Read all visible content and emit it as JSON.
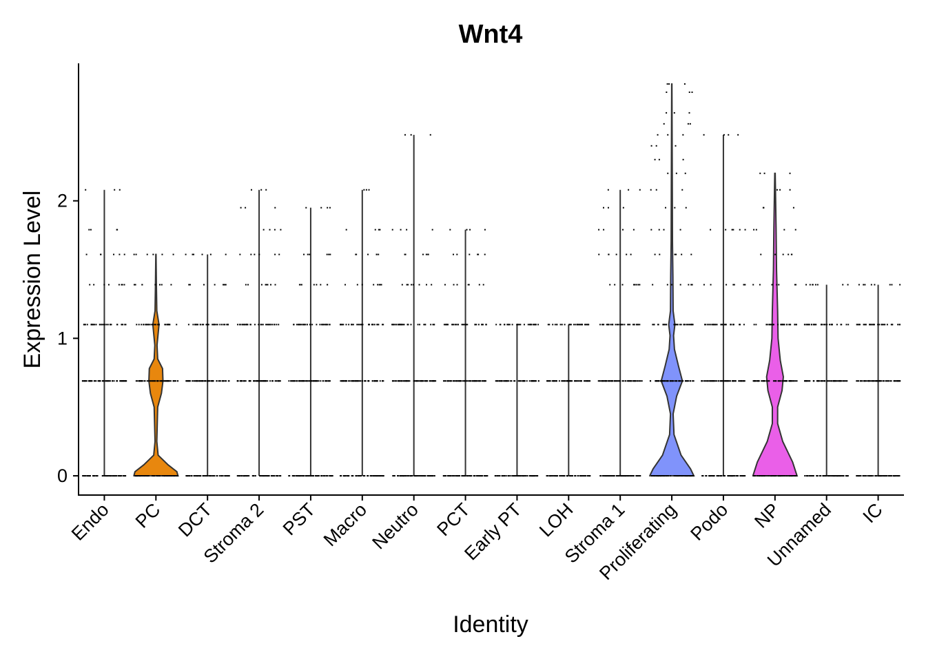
{
  "chart_data": {
    "type": "violin",
    "title": "Wnt4",
    "xlabel": "Identity",
    "ylabel": "Expression Level",
    "ylim": [
      -0.14,
      3.0
    ],
    "yticks": [
      "0",
      "1",
      "2"
    ],
    "grid": false,
    "legend": "none",
    "categories": [
      "Endo",
      "PC",
      "DCT",
      "Stroma 2",
      "PST",
      "Macro",
      "Neutro",
      "PCT",
      "Early PT",
      "LOH",
      "Stroma 1",
      "Proliferating",
      "Podo",
      "NP",
      "Unnamed",
      "IC"
    ],
    "series": [
      {
        "category": "Endo",
        "color": "#ffffff",
        "max": 2.08,
        "levels": [
          0,
          0.69,
          1.1,
          1.39,
          1.61,
          1.79,
          2.08
        ]
      },
      {
        "category": "PC",
        "color": "#e8870e",
        "max": 1.61,
        "levels": [
          0,
          0.69,
          1.1,
          1.39,
          1.61
        ]
      },
      {
        "category": "DCT",
        "color": "#ffffff",
        "max": 1.61,
        "levels": [
          0,
          0.69,
          1.1,
          1.39,
          1.61
        ]
      },
      {
        "category": "Stroma 2",
        "color": "#ffffff",
        "max": 2.08,
        "levels": [
          0,
          0.69,
          1.1,
          1.39,
          1.61,
          1.79,
          1.95,
          2.08
        ]
      },
      {
        "category": "PST",
        "color": "#ffffff",
        "max": 1.95,
        "levels": [
          0,
          0.69,
          1.1,
          1.39,
          1.61,
          1.95
        ]
      },
      {
        "category": "Macro",
        "color": "#ffffff",
        "max": 2.08,
        "levels": [
          0,
          0.69,
          1.1,
          1.39,
          1.61,
          1.79,
          2.08
        ]
      },
      {
        "category": "Neutro",
        "color": "#ffffff",
        "max": 2.48,
        "levels": [
          0,
          0.69,
          1.1,
          1.39,
          1.61,
          1.79,
          2.48
        ]
      },
      {
        "category": "PCT",
        "color": "#ffffff",
        "max": 1.79,
        "levels": [
          0,
          0.69,
          1.1,
          1.39,
          1.61,
          1.79
        ]
      },
      {
        "category": "Early PT",
        "color": "#ffffff",
        "max": 1.1,
        "levels": [
          0,
          0.69,
          1.1
        ]
      },
      {
        "category": "LOH",
        "color": "#ffffff",
        "max": 1.1,
        "levels": [
          0,
          0.69,
          1.1
        ]
      },
      {
        "category": "Stroma 1",
        "color": "#ffffff",
        "max": 2.08,
        "levels": [
          0,
          0.69,
          1.1,
          1.39,
          1.61,
          1.79,
          1.95,
          2.08
        ]
      },
      {
        "category": "Proliferating",
        "color": "#8093fb",
        "max": 2.85,
        "levels": [
          0,
          0.69,
          1.1,
          1.39,
          1.61,
          1.79,
          1.95,
          2.08,
          2.2,
          2.3,
          2.4,
          2.48,
          2.56,
          2.64,
          2.79,
          2.85
        ]
      },
      {
        "category": "Podo",
        "color": "#ffffff",
        "max": 2.48,
        "levels": [
          0,
          0.69,
          1.1,
          1.39,
          1.79,
          2.48
        ]
      },
      {
        "category": "NP",
        "color": "#ea5fe8",
        "max": 2.2,
        "levels": [
          0,
          0.69,
          1.1,
          1.39,
          1.61,
          1.79,
          1.95,
          2.08,
          2.2
        ]
      },
      {
        "category": "Unnamed",
        "color": "#ffffff",
        "max": 1.39,
        "levels": [
          0,
          0.69,
          1.1,
          1.39
        ]
      },
      {
        "category": "IC",
        "color": "#ffffff",
        "max": 1.39,
        "levels": [
          0,
          0.69,
          1.1,
          1.39
        ]
      }
    ]
  }
}
